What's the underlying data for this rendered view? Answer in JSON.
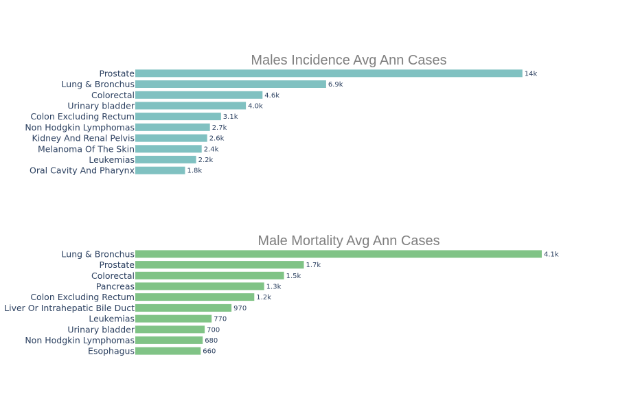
{
  "chart_data": [
    {
      "type": "bar",
      "orientation": "horizontal",
      "title": "Males Incidence Avg Ann Cases",
      "color": "#80c1c1",
      "categories": [
        "Prostate",
        "Lung & Bronchus",
        "Colorectal",
        "Urinary bladder",
        "Colon Excluding Rectum",
        "Non Hodgkin Lymphomas",
        "Kidney And Renal Pelvis",
        "Melanoma Of The Skin",
        "Leukemias",
        "Oral Cavity And Pharynx"
      ],
      "values": [
        14000,
        6900,
        4600,
        4000,
        3100,
        2700,
        2600,
        2400,
        2200,
        1800
      ],
      "value_labels": [
        "14k",
        "6.9k",
        "4.6k",
        "4.0k",
        "3.1k",
        "2.7k",
        "2.6k",
        "2.4k",
        "2.2k",
        "1.8k"
      ],
      "xlim": [
        0,
        14700
      ],
      "grid": false
    },
    {
      "type": "bar",
      "orientation": "horizontal",
      "title": "Male Mortality Avg Ann Cases",
      "color": "#80c386",
      "categories": [
        "Lung & Bronchus",
        "Prostate",
        "Colorectal",
        "Pancreas",
        "Colon Excluding Rectum",
        "Liver Or Intrahepatic Bile Duct",
        "Leukemias",
        "Urinary bladder",
        "Non Hodgkin Lymphomas",
        "Esophagus"
      ],
      "values": [
        4100,
        1700,
        1500,
        1300,
        1200,
        970,
        770,
        700,
        680,
        660
      ],
      "value_labels": [
        "4.1k",
        "1.7k",
        "1.5k",
        "1.3k",
        "1.2k",
        "970",
        "770",
        "700",
        "680",
        "660"
      ],
      "xlim": [
        0,
        4100
      ],
      "grid": false
    }
  ]
}
